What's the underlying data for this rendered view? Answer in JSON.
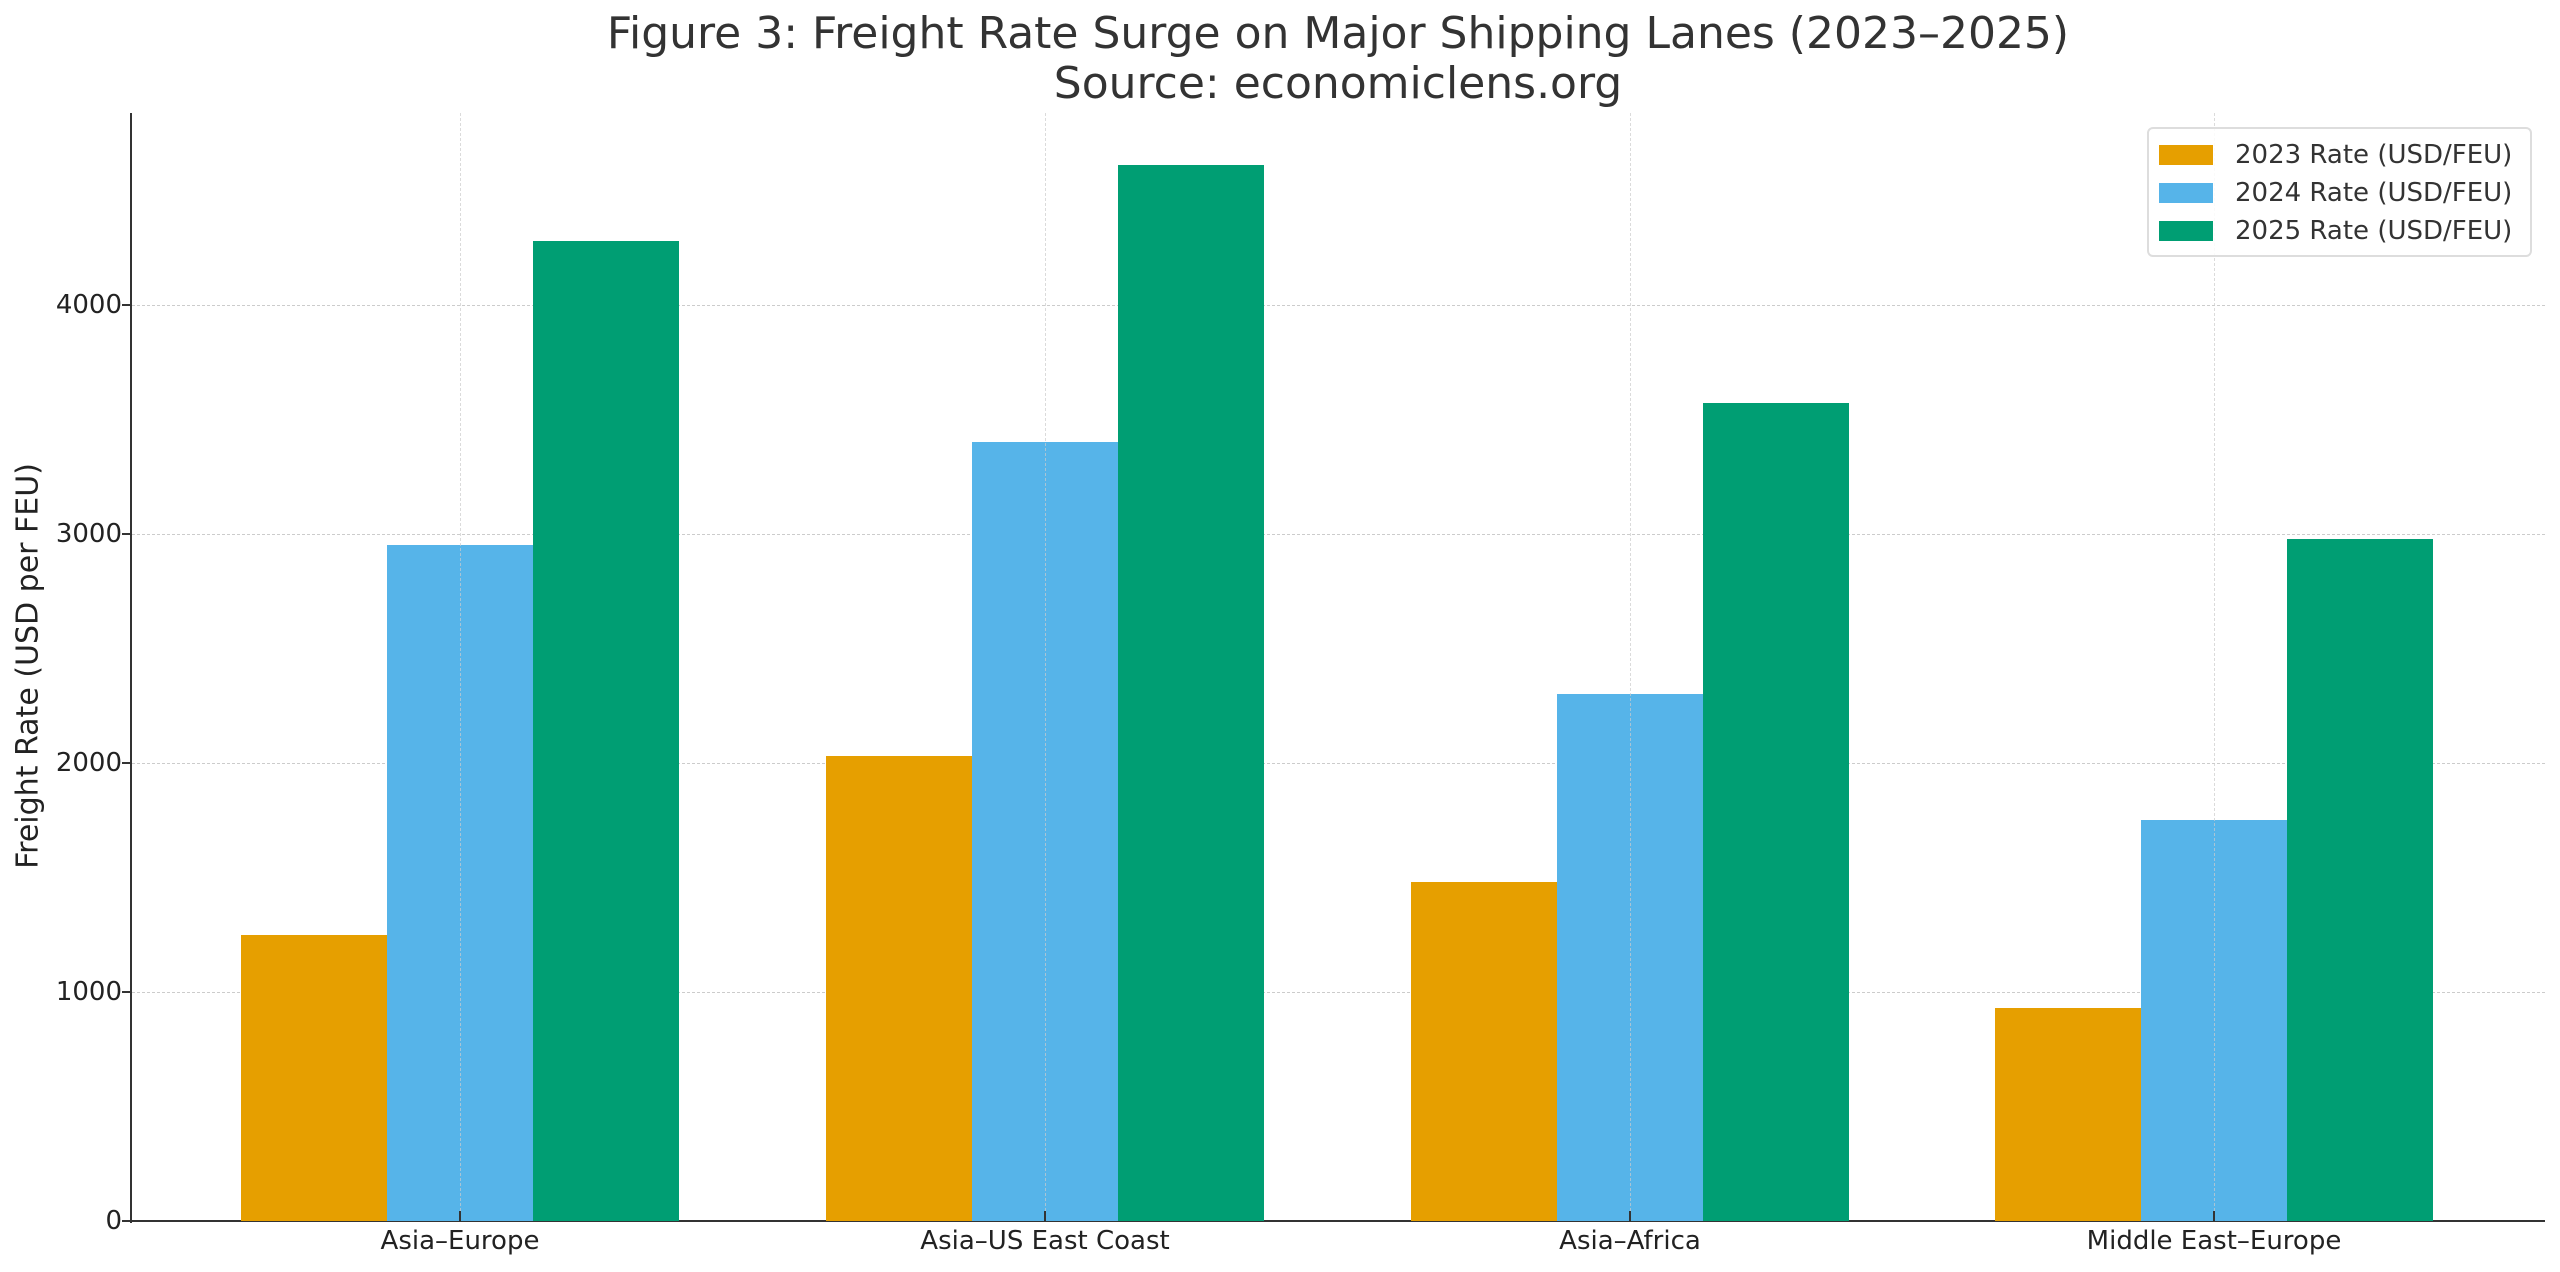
{
  "title": {
    "line1": "Figure 3: Freight Rate Surge on Major Shipping Lanes (2023–2025)",
    "line2": "Source: economiclens.org"
  },
  "axes": {
    "ylabel": "Freight Rate (USD per FEU)",
    "yticks": [
      "0",
      "1000",
      "2000",
      "3000",
      "4000"
    ]
  },
  "legend": {
    "items": [
      {
        "label": "2023 Rate (USD/FEU)",
        "color": "#E69F00"
      },
      {
        "label": "2024 Rate (USD/FEU)",
        "color": "#56B4E9"
      },
      {
        "label": "2025 Rate (USD/FEU)",
        "color": "#009E73"
      }
    ]
  },
  "chart_data": {
    "type": "bar",
    "title": "Figure 3: Freight Rate Surge on Major Shipping Lanes (2023–2025)\nSource: economiclens.org",
    "xlabel": "",
    "ylabel": "Freight Rate (USD per FEU)",
    "categories": [
      "Asia–Europe",
      "Asia–US East Coast",
      "Asia–Africa",
      "Middle East–Europe"
    ],
    "series": [
      {
        "name": "2023 Rate (USD/FEU)",
        "color": "#E69F00",
        "values": [
          1250,
          2030,
          1480,
          930
        ]
      },
      {
        "name": "2024 Rate (USD/FEU)",
        "color": "#56B4E9",
        "values": [
          2950,
          3400,
          2300,
          1750
        ]
      },
      {
        "name": "2025 Rate (USD/FEU)",
        "color": "#009E73",
        "values": [
          4280,
          4610,
          3570,
          2980
        ]
      }
    ],
    "ylim": [
      0,
      4840
    ],
    "yticks": [
      0,
      1000,
      2000,
      3000,
      4000
    ],
    "grid": true,
    "grid_style": "dashed",
    "legend_position": "upper right"
  }
}
